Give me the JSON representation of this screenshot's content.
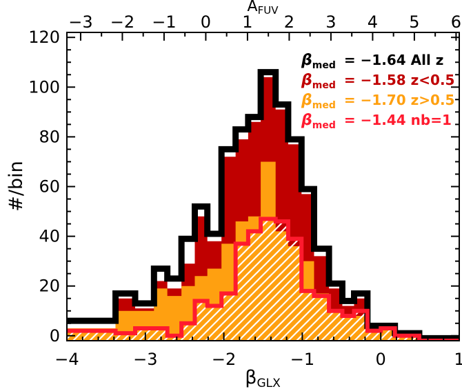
{
  "chart_data": {
    "type": "histogram",
    "xlabel": "βGLX",
    "xlabel_main": "β",
    "xlabel_sub": "GLX",
    "ylabel": "#/bin",
    "top_axis_label": "AFUV",
    "top_axis_label_main": "A",
    "top_axis_label_sub": "FUV",
    "xlim": [
      -4,
      1
    ],
    "ylim": [
      -2,
      122
    ],
    "xticks": [
      -4,
      -3,
      -2,
      -1,
      0,
      1
    ],
    "xtick_labels": [
      "−4",
      "−3",
      "−2",
      "−1",
      "0",
      "1"
    ],
    "yticks": [
      0,
      20,
      40,
      60,
      80,
      100,
      120
    ],
    "ytick_labels": [
      "0",
      "20",
      "40",
      "60",
      "80",
      "100",
      "120"
    ],
    "top_ticks": [
      -3,
      -2,
      -1,
      0,
      1,
      2,
      3,
      4,
      5,
      6
    ],
    "top_tick_labels": [
      "−3",
      "−2",
      "−1",
      "0",
      "1",
      "2",
      "3",
      "4",
      "5",
      "6"
    ],
    "top_axis_beta_at_zero": -2.23,
    "top_axis_beta_per_unit": 0.5316,
    "bin_edges": [
      -4.0,
      -3.65,
      -3.38,
      -3.13,
      -2.89,
      -2.72,
      -2.54,
      -2.37,
      -2.21,
      -2.03,
      -1.85,
      -1.69,
      -1.53,
      -1.34,
      -1.18,
      -1.01,
      -0.85,
      -0.66,
      -0.49,
      -0.34,
      -0.17,
      0.0,
      0.18,
      0.34,
      0.49,
      0.62,
      1.0
    ],
    "series": [
      {
        "name": "All z",
        "color": "#000000",
        "values": [
          6,
          6,
          17,
          13,
          27,
          23,
          39,
          52,
          41,
          75,
          83,
          88,
          106,
          93,
          79,
          59,
          35,
          21,
          14,
          17,
          4,
          4,
          1,
          1,
          -1,
          -1
        ]
      },
      {
        "name": "z<0.5",
        "color": "#c00000",
        "values": [
          3,
          3,
          15,
          11,
          22,
          19,
          29,
          48,
          38,
          72,
          79,
          86,
          104,
          91,
          77,
          57,
          32,
          19,
          12,
          15,
          3,
          3,
          0,
          0,
          -1,
          -1
        ]
      },
      {
        "name": "z>0.5",
        "color": "#ffa010",
        "values": [
          3,
          3,
          10,
          10,
          19,
          16,
          20,
          24,
          27,
          37,
          46,
          48,
          70,
          42,
          36,
          30,
          17,
          10,
          8,
          8,
          3,
          3,
          1,
          1,
          -1,
          -1
        ]
      },
      {
        "name": "nb=1",
        "color": "#ff1a2e",
        "values": [
          2,
          2,
          1,
          3,
          3,
          0,
          5,
          14,
          12,
          17,
          37,
          42,
          47,
          46,
          39,
          18,
          16,
          10,
          8,
          10,
          2,
          3,
          0,
          0,
          -2,
          -2
        ]
      }
    ],
    "legend": {
      "placement": "top-right",
      "entries": [
        {
          "sym": "β",
          "sub": "med",
          "text": "= −1.64 All z",
          "color": "#000000"
        },
        {
          "sym": "β",
          "sub": "med",
          "text": "= −1.58 z<0.5",
          "color": "#c00000"
        },
        {
          "sym": "β",
          "sub": "med",
          "text": "= −1.70 z>0.5",
          "color": "#ffa010"
        },
        {
          "sym": "β",
          "sub": "med",
          "text": "= −1.44 nb=1",
          "color": "#ff1a2e"
        }
      ]
    }
  }
}
